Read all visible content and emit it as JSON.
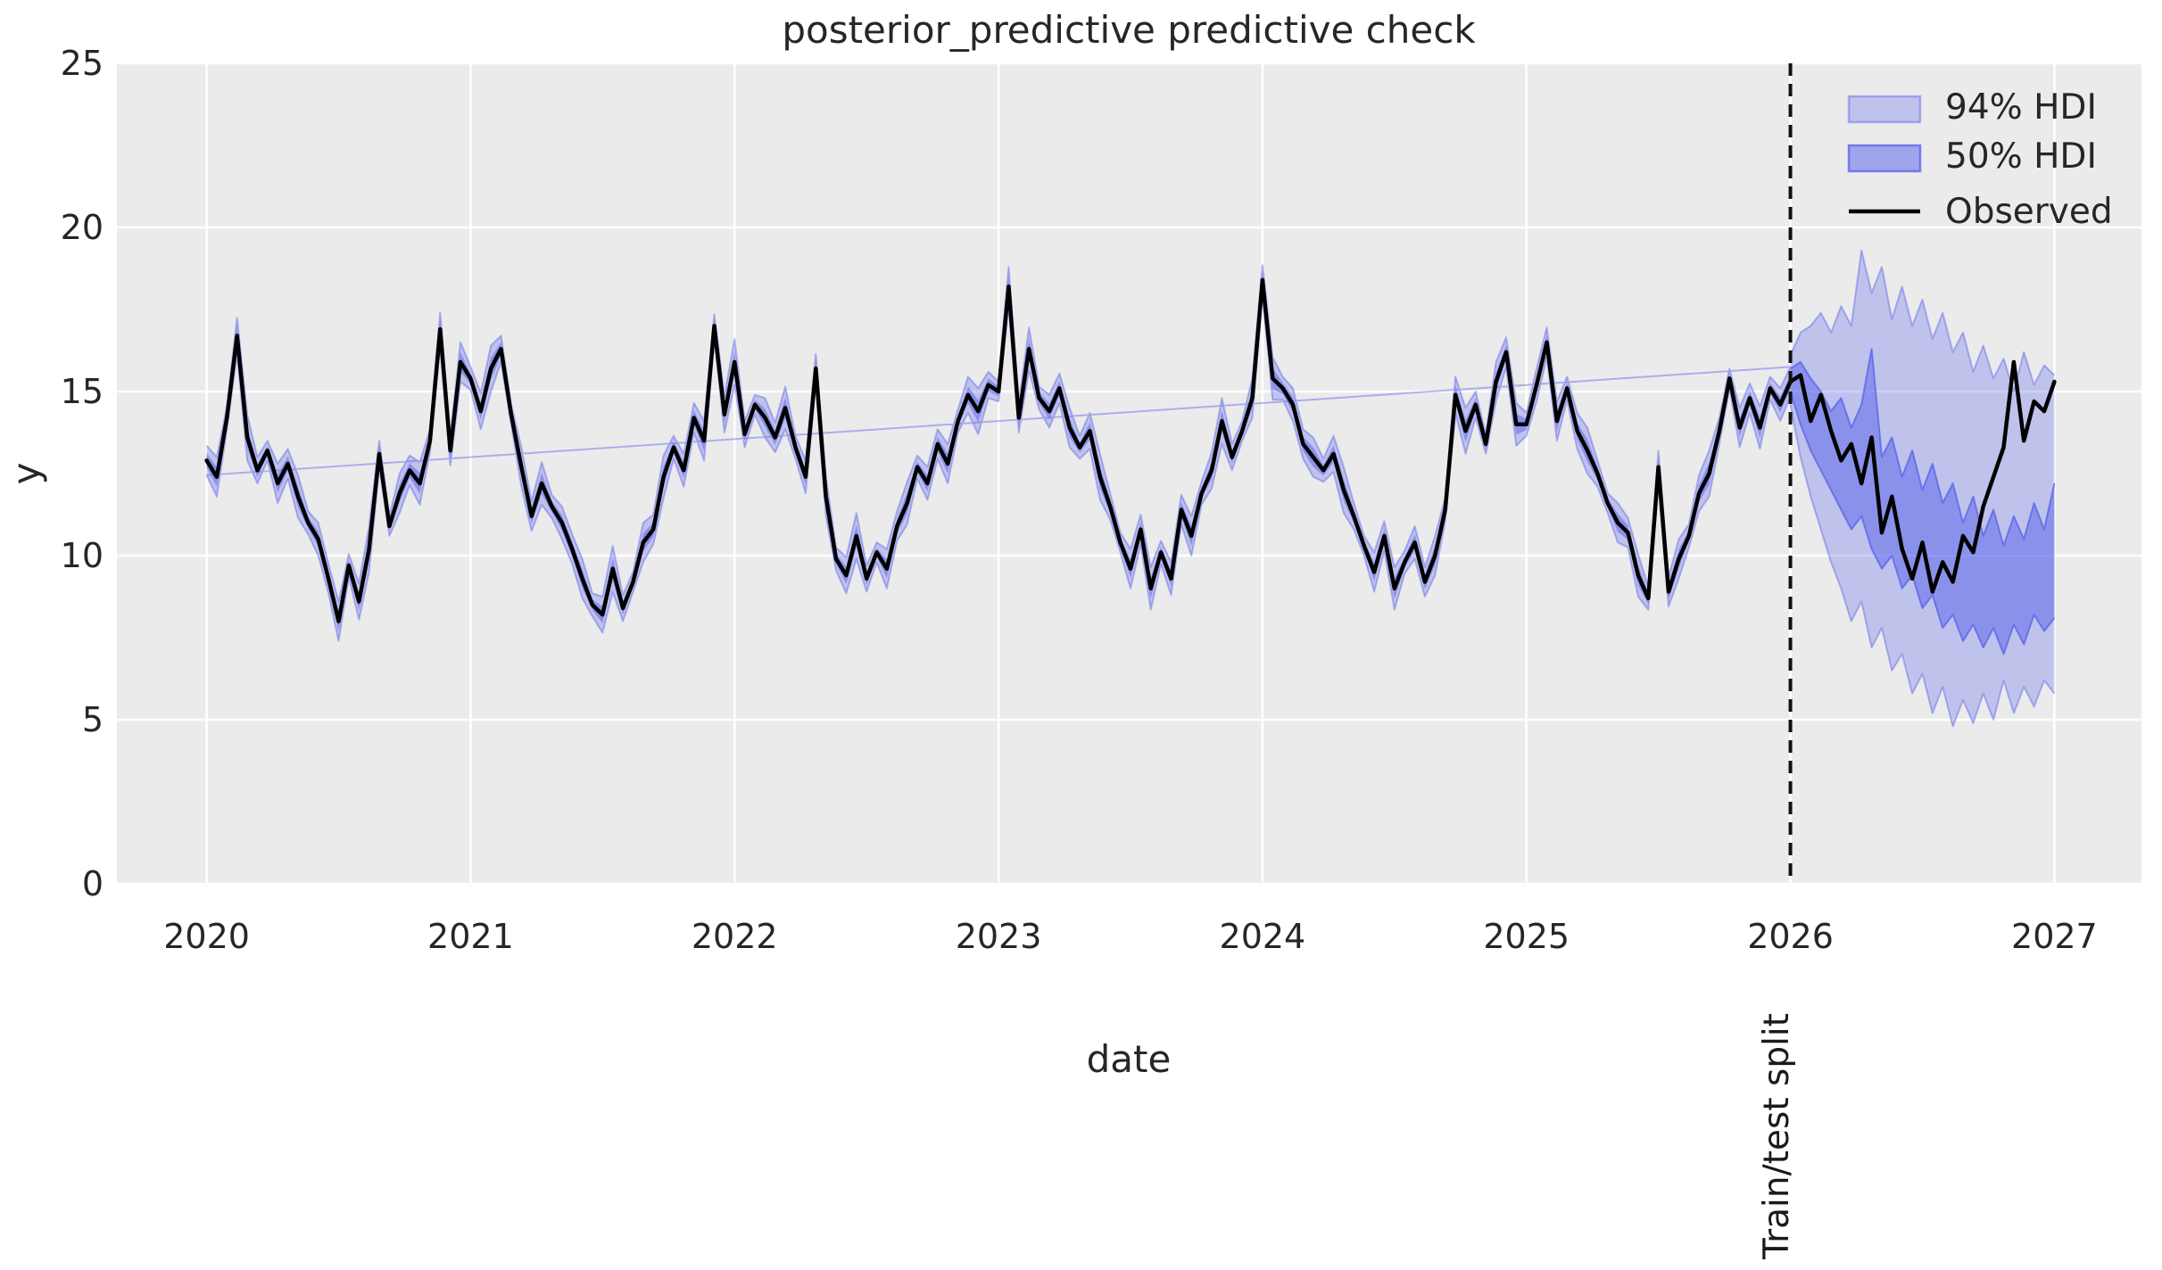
{
  "chart_data": {
    "type": "line",
    "title": "posterior_predictive predictive check",
    "xlabel": "date",
    "ylabel": "y",
    "xlim": [
      2019.66,
      2027.33
    ],
    "ylim": [
      0,
      25
    ],
    "xticks": [
      2020,
      2021,
      2022,
      2023,
      2024,
      2025,
      2026,
      2027
    ],
    "yticks": [
      0,
      5,
      10,
      15,
      20,
      25
    ],
    "grid": true,
    "legend_position": "upper right",
    "legend": {
      "entries": [
        {
          "label": "94% HDI",
          "swatch": "patch-light"
        },
        {
          "label": "50% HDI",
          "swatch": "patch-medium"
        },
        {
          "label": "Observed",
          "swatch": "line"
        }
      ]
    },
    "split": {
      "x": 2026.0,
      "label": "Train/test split"
    },
    "colors": {
      "background": "#ebebeb",
      "grid": "#ffffff",
      "hdi94_fill": "rgba(90,100,235,0.30)",
      "hdi94_edge": "rgba(90,100,235,0.45)",
      "hdi50_fill": "rgba(90,100,235,0.52)",
      "hdi50_edge": "rgba(90,100,235,0.78)",
      "observed": "#000000",
      "split_line": "#111111",
      "text": "#262626"
    },
    "observed": {
      "x_start": 2020.0,
      "x_step": 0.0384615385,
      "values": [
        12.9,
        12.4,
        14.2,
        16.7,
        13.6,
        12.6,
        13.2,
        12.2,
        12.8,
        11.8,
        11.0,
        10.5,
        9.3,
        8.0,
        9.7,
        8.6,
        10.2,
        13.1,
        10.9,
        11.9,
        12.6,
        12.2,
        13.5,
        16.9,
        13.2,
        15.9,
        15.4,
        14.4,
        15.7,
        16.3,
        14.3,
        12.7,
        11.2,
        12.2,
        11.5,
        11.0,
        10.2,
        9.3,
        8.5,
        8.2,
        9.6,
        8.4,
        9.2,
        10.4,
        10.8,
        12.4,
        13.3,
        12.6,
        14.2,
        13.5,
        17.0,
        14.3,
        15.9,
        13.7,
        14.6,
        14.2,
        13.6,
        14.5,
        13.3,
        12.4,
        15.7,
        11.8,
        9.9,
        9.4,
        10.6,
        9.3,
        10.1,
        9.6,
        10.9,
        11.6,
        12.7,
        12.2,
        13.4,
        12.8,
        14.1,
        14.9,
        14.4,
        15.2,
        15.0,
        18.2,
        14.2,
        16.3,
        14.8,
        14.4,
        15.1,
        13.9,
        13.3,
        13.8,
        12.4,
        11.5,
        10.4,
        9.6,
        10.8,
        9.0,
        10.1,
        9.3,
        11.4,
        10.6,
        11.9,
        12.6,
        14.1,
        13.0,
        13.8,
        14.8,
        18.4,
        15.4,
        15.1,
        14.6,
        13.4,
        13.0,
        12.6,
        13.1,
        12.0,
        11.2,
        10.3,
        9.5,
        10.6,
        9.0,
        9.8,
        10.4,
        9.2,
        10.0,
        11.4,
        14.9,
        13.8,
        14.6,
        13.4,
        15.3,
        16.2,
        14.0,
        14.0,
        15.2,
        16.5,
        14.1,
        15.1,
        13.8,
        13.2,
        12.5,
        11.6,
        11.0,
        10.7,
        9.4,
        8.7,
        12.7,
        8.9,
        9.9,
        10.6,
        11.9,
        12.5,
        13.8,
        15.4,
        13.9,
        14.8,
        13.9,
        15.1,
        14.6,
        15.3,
        15.5,
        14.1,
        14.9,
        13.8,
        12.9,
        13.4,
        12.2,
        13.6,
        10.7,
        11.8,
        10.2,
        9.3,
        10.4,
        8.9,
        9.8,
        9.2,
        10.6,
        10.1,
        11.5,
        12.4,
        13.3,
        15.9,
        13.5,
        14.7,
        14.4,
        15.3
      ]
    },
    "hdi_train": {
      "end_index": 156,
      "halfwidth94_cycle": [
        0.45,
        0.6,
        0.35,
        0.55,
        0.7,
        0.4,
        0.3,
        0.6,
        0.45,
        0.65,
        0.35,
        0.5
      ],
      "halfwidth50_cycle": [
        0.22,
        0.3,
        0.16,
        0.26,
        0.34,
        0.2,
        0.14,
        0.28,
        0.22,
        0.32,
        0.17,
        0.24
      ]
    },
    "hdi_test": {
      "x_start": 2026.0,
      "x_step": 0.0384615385,
      "hdi94_lo": [
        14.6,
        13.0,
        11.8,
        10.8,
        9.8,
        9.0,
        8.0,
        8.6,
        7.2,
        7.8,
        6.5,
        7.0,
        5.8,
        6.4,
        5.2,
        6.0,
        4.8,
        5.6,
        4.9,
        5.8,
        5.0,
        6.2,
        5.2,
        6.0,
        5.4,
        6.2,
        5.8
      ],
      "hdi94_hi": [
        16.1,
        16.8,
        17.0,
        17.4,
        16.8,
        17.6,
        17.0,
        19.3,
        18.0,
        18.8,
        17.2,
        18.2,
        17.0,
        17.8,
        16.6,
        17.4,
        16.2,
        16.8,
        15.6,
        16.4,
        15.4,
        16.0,
        15.0,
        16.2,
        15.2,
        15.8,
        15.5
      ],
      "hdi50_lo": [
        15.0,
        14.0,
        13.2,
        12.6,
        12.0,
        11.4,
        10.8,
        11.2,
        10.2,
        9.6,
        10.0,
        9.0,
        9.4,
        8.4,
        8.8,
        7.8,
        8.2,
        7.4,
        7.9,
        7.2,
        7.8,
        7.0,
        7.9,
        7.3,
        8.2,
        7.7,
        8.1
      ],
      "hdi50_hi": [
        15.7,
        15.9,
        15.4,
        15.0,
        14.4,
        14.8,
        13.9,
        14.6,
        16.3,
        13.0,
        13.6,
        12.4,
        13.2,
        12.0,
        12.8,
        11.6,
        12.2,
        11.0,
        11.8,
        10.6,
        11.4,
        10.3,
        11.2,
        10.5,
        11.6,
        10.8,
        12.2
      ]
    }
  }
}
